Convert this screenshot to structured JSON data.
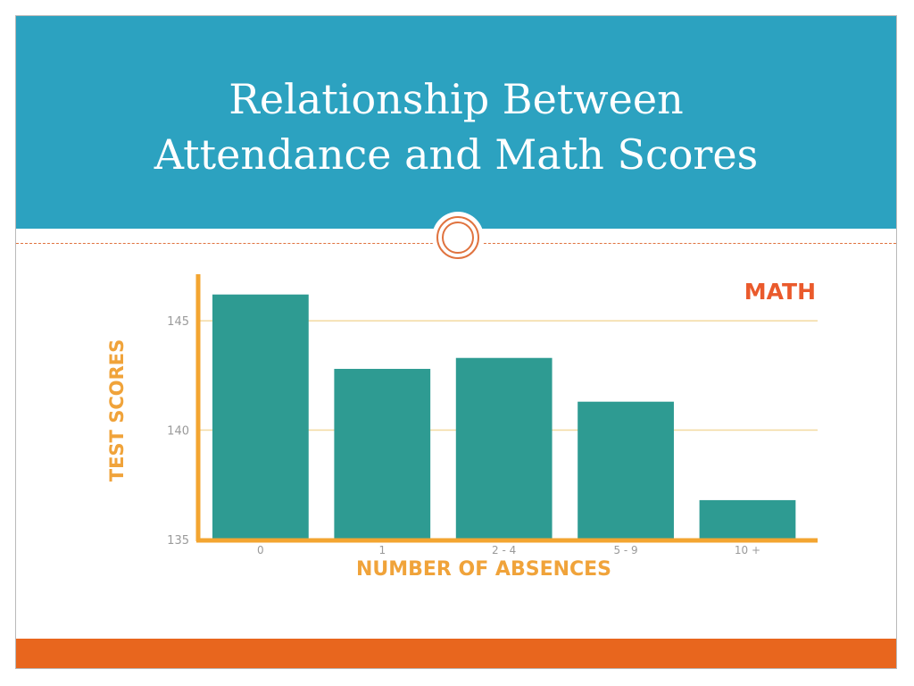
{
  "slide": {
    "title_line1": "Relationship Between",
    "title_line2": "Attendance and Math Scores"
  },
  "colors": {
    "header": "#2ca2c0",
    "footer": "#e8661e",
    "bar": "#2e9b92",
    "axis": "#f3a531",
    "gridline": "#f3d9a0",
    "chart_title": "#ea5a2c",
    "axis_label": "#f0a33a"
  },
  "chart_data": {
    "type": "bar",
    "title": "MATH",
    "xlabel": "NUMBER OF ABSENCES",
    "ylabel": "TEST SCORES",
    "categories": [
      "0",
      "1",
      "2 - 4",
      "5 - 9",
      "10 +"
    ],
    "values": [
      146.2,
      142.8,
      143.3,
      141.3,
      136.8
    ],
    "ylim": [
      135,
      146.8
    ],
    "yticks": [
      135,
      140,
      145
    ],
    "grid": true,
    "legend": "none"
  }
}
